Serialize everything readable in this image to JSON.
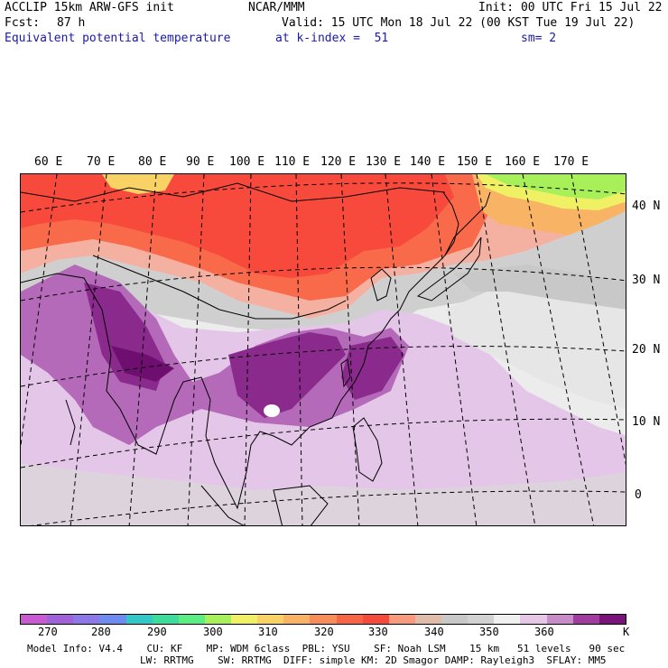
{
  "header": {
    "model_title": "ACCLIP 15km ARW-GFS init",
    "center": "NCAR/MMM",
    "init": "Init: 00 UTC Fri 15 Jul 22",
    "fcst_label": "Fcst:",
    "fcst_value": "87 h",
    "valid": "Valid: 15 UTC Mon 18 Jul 22 (00 KST Tue 19 Jul 22)",
    "field": "Equivalent potential temperature",
    "level": "at k-index =  51",
    "smoothing": "sm= 2"
  },
  "map": {
    "lon_labels": [
      "60 E",
      "70 E",
      "80 E",
      "90 E",
      "100 E",
      "110 E",
      "120 E",
      "130 E",
      "140 E",
      "150 E",
      "160 E",
      "170 E"
    ],
    "lat_labels": [
      "40 N",
      "30 N",
      "20 N",
      "10 N",
      "0"
    ]
  },
  "colorbar": {
    "colors": [
      "#c85ad2",
      "#a062d8",
      "#8c78e6",
      "#6e8cf0",
      "#32c8c8",
      "#3cdc9a",
      "#5aee82",
      "#a8f05a",
      "#f0f064",
      "#f8d264",
      "#f8b464",
      "#f88c5a",
      "#f86446",
      "#f84a3c",
      "#f89a7e",
      "#e0bca8",
      "#c8c8c8",
      "#d2d2d2",
      "#f0f0f0",
      "#e6c8e6",
      "#c88cc8",
      "#a03ca0",
      "#7a147a"
    ],
    "labels": [
      "270",
      "280",
      "290",
      "300",
      "310",
      "320",
      "330",
      "340",
      "350",
      "360",
      "K"
    ]
  },
  "footer": {
    "line1": "Model Info: V4.4    CU: KF    MP: WDM 6class  PBL: YSU    SF: Noah LSM    15 km   51 levels   90 sec",
    "line2": "LW: RRTMG    SW: RRTMG  DIFF: simple KM: 2D Smagor DAMP: Rayleigh3  SFLAY: MM5"
  }
}
